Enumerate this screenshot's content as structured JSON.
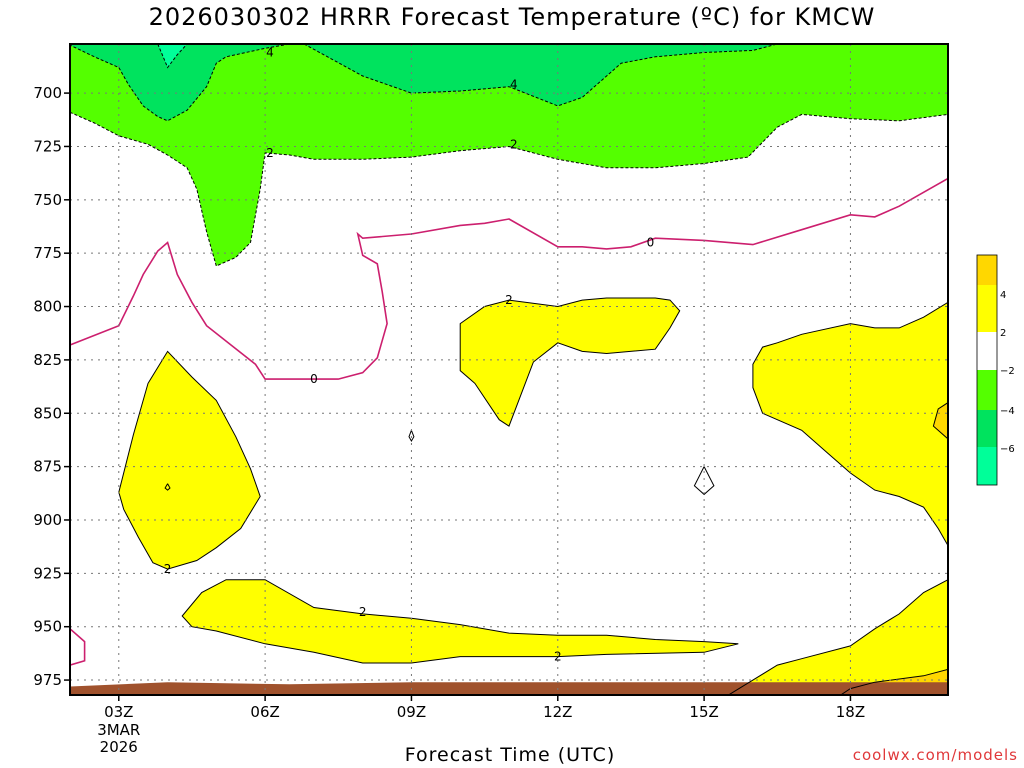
{
  "title": "2026030302 HRRR Forecast Temperature (ºC) for KMCW",
  "credit": "coolwx.com/models",
  "chart_data": {
    "type": "contour",
    "title": "2026030302 HRRR Forecast Temperature (ºC) for KMCW",
    "xlabel": "Forecast Time (UTC)",
    "ylabel": "",
    "x_ticks": [
      {
        "hour": 3,
        "label": "03Z",
        "sub": [
          "3MAR",
          "2026"
        ]
      },
      {
        "hour": 6,
        "label": "06Z"
      },
      {
        "hour": 9,
        "label": "09Z"
      },
      {
        "hour": 12,
        "label": "12Z"
      },
      {
        "hour": 15,
        "label": "15Z"
      },
      {
        "hour": 18,
        "label": "18Z"
      }
    ],
    "xlim": [
      2,
      20
    ],
    "y_ticks": [
      700,
      725,
      750,
      775,
      800,
      825,
      850,
      875,
      900,
      925,
      950,
      975
    ],
    "ylim": [
      677,
      982
    ],
    "y_inverted": true,
    "grid": true,
    "colors": {
      "pos2to4": "#ffff00",
      "pos4to6": "#ffd700",
      "neg2to4": "#54ff00",
      "neg4to6": "#00e35e",
      "neg6to8": "#00ff99",
      "ground": "#a0522d",
      "zero_line": "#cc1f6e",
      "frame": "#000000"
    },
    "colorbar": {
      "labels": [
        "4",
        "2",
        "−2",
        "−4",
        "−6"
      ]
    },
    "ground_top_pressure": [
      [
        2.0,
        978
      ],
      [
        4.0,
        976
      ],
      [
        6.5,
        977
      ],
      [
        9.0,
        976
      ],
      [
        20.0,
        976
      ]
    ],
    "contours": [
      {
        "level": -2,
        "kind": "fill",
        "fill": "neg2to4",
        "stroke": "dashed",
        "path": [
          [
            2.0,
            677
          ],
          [
            20.0,
            677
          ],
          [
            20.0,
            710
          ],
          [
            19.0,
            713
          ],
          [
            18.0,
            712
          ],
          [
            17.0,
            710
          ],
          [
            16.5,
            716
          ],
          [
            15.9,
            730
          ],
          [
            15.0,
            733
          ],
          [
            14.0,
            735
          ],
          [
            13.0,
            735
          ],
          [
            12.0,
            731
          ],
          [
            11.0,
            725
          ],
          [
            10.0,
            727
          ],
          [
            9.0,
            730
          ],
          [
            8.0,
            731
          ],
          [
            7.0,
            731
          ],
          [
            6.5,
            729
          ],
          [
            6.0,
            728
          ],
          [
            5.9,
            745
          ],
          [
            5.7,
            770
          ],
          [
            5.4,
            777
          ],
          [
            5.0,
            781
          ],
          [
            4.8,
            765
          ],
          [
            4.6,
            745
          ],
          [
            4.4,
            735
          ],
          [
            4.0,
            729
          ],
          [
            3.6,
            724
          ],
          [
            3.0,
            720
          ],
          [
            2.5,
            714
          ],
          [
            2.0,
            709
          ]
        ]
      },
      {
        "level": -4,
        "kind": "fill",
        "fill": "neg4to6",
        "stroke": "dashed",
        "path": [
          [
            2.0,
            677
          ],
          [
            2.0,
            677.5
          ],
          [
            2.5,
            683
          ],
          [
            3.0,
            688
          ],
          [
            3.2,
            696
          ],
          [
            3.5,
            706
          ],
          [
            3.8,
            711
          ],
          [
            4.0,
            713
          ],
          [
            4.4,
            708
          ],
          [
            4.8,
            697
          ],
          [
            5.0,
            686
          ],
          [
            5.2,
            683
          ],
          [
            6.0,
            679
          ],
          [
            6.5,
            677
          ]
        ]
      },
      {
        "level": -4,
        "kind": "fill",
        "fill": "neg4to6",
        "stroke": "dashed",
        "path": [
          [
            6.8,
            677
          ],
          [
            8.0,
            692
          ],
          [
            9.0,
            700
          ],
          [
            10.0,
            699
          ],
          [
            11.0,
            697
          ],
          [
            12.0,
            706
          ],
          [
            12.5,
            702
          ],
          [
            13.0,
            692
          ],
          [
            13.3,
            686
          ],
          [
            14.0,
            683
          ],
          [
            15.0,
            681
          ],
          [
            16.0,
            680
          ],
          [
            16.5,
            677
          ]
        ]
      },
      {
        "level": -6,
        "kind": "fill",
        "fill": "neg6to8",
        "stroke": "dashed",
        "path": [
          [
            3.8,
            677
          ],
          [
            4.0,
            688
          ],
          [
            4.2,
            682
          ],
          [
            4.4,
            677
          ]
        ]
      },
      {
        "level": 0,
        "kind": "line",
        "stroke": "zero_line",
        "path": [
          [
            2.0,
            818
          ],
          [
            3.0,
            809
          ],
          [
            3.3,
            795
          ],
          [
            3.5,
            785
          ],
          [
            3.8,
            774
          ],
          [
            4.0,
            770
          ],
          [
            4.2,
            785
          ],
          [
            4.5,
            798
          ],
          [
            4.8,
            809
          ],
          [
            5.3,
            818
          ],
          [
            5.8,
            827
          ],
          [
            6.0,
            834
          ],
          [
            6.5,
            834
          ],
          [
            7.0,
            834
          ],
          [
            7.5,
            834
          ],
          [
            8.0,
            831
          ],
          [
            8.3,
            824
          ],
          [
            8.5,
            808
          ],
          [
            8.4,
            793
          ],
          [
            8.3,
            780
          ],
          [
            8.0,
            776
          ],
          [
            7.9,
            766
          ],
          [
            8.0,
            768
          ],
          [
            9.0,
            766
          ],
          [
            10.0,
            762
          ],
          [
            10.5,
            761
          ],
          [
            11.0,
            759
          ],
          [
            12.0,
            772
          ],
          [
            12.5,
            772
          ],
          [
            13.0,
            773
          ],
          [
            13.5,
            772
          ],
          [
            14.0,
            768
          ],
          [
            15.0,
            769
          ],
          [
            16.0,
            771
          ],
          [
            17.0,
            764
          ],
          [
            18.0,
            757
          ],
          [
            18.5,
            758
          ],
          [
            19.0,
            753
          ],
          [
            20.0,
            740
          ]
        ]
      },
      {
        "level": 2,
        "kind": "fill",
        "fill": "pos2to4",
        "stroke": "solid",
        "path": [
          [
            3.0,
            887
          ],
          [
            3.3,
            860
          ],
          [
            3.6,
            836
          ],
          [
            4.0,
            821
          ],
          [
            4.5,
            833
          ],
          [
            5.0,
            844
          ],
          [
            5.4,
            861
          ],
          [
            5.7,
            876
          ],
          [
            5.9,
            889
          ],
          [
            5.5,
            904
          ],
          [
            5.0,
            913
          ],
          [
            4.6,
            919
          ],
          [
            4.0,
            923
          ],
          [
            3.7,
            920
          ],
          [
            3.4,
            908
          ],
          [
            3.1,
            895
          ]
        ]
      },
      {
        "level": 2,
        "kind": "fill",
        "fill": "pos2to4",
        "stroke": "solid",
        "path": [
          [
            4.3,
            945
          ],
          [
            4.7,
            934
          ],
          [
            5.2,
            928
          ],
          [
            6.0,
            928
          ],
          [
            7.0,
            941
          ],
          [
            8.0,
            944
          ],
          [
            9.0,
            946
          ],
          [
            10.0,
            949
          ],
          [
            11.0,
            953
          ],
          [
            12.0,
            954
          ],
          [
            13.0,
            954
          ],
          [
            14.0,
            956
          ],
          [
            15.0,
            957
          ],
          [
            15.7,
            958
          ],
          [
            15.0,
            962
          ],
          [
            13.0,
            963
          ],
          [
            12.0,
            964
          ],
          [
            11.0,
            964
          ],
          [
            10.0,
            964
          ],
          [
            9.0,
            967
          ],
          [
            8.0,
            967
          ],
          [
            7.0,
            962
          ],
          [
            6.0,
            958
          ],
          [
            5.0,
            952
          ],
          [
            4.5,
            950
          ]
        ]
      },
      {
        "level": 2,
        "kind": "fill",
        "fill": "pos2to4",
        "stroke": "solid",
        "path": [
          [
            10.0,
            808
          ],
          [
            10.5,
            800
          ],
          [
            11.0,
            797
          ],
          [
            12.0,
            800
          ],
          [
            12.5,
            797
          ],
          [
            13.0,
            796
          ],
          [
            14.0,
            796
          ],
          [
            14.3,
            797
          ],
          [
            14.5,
            802
          ],
          [
            14.3,
            810
          ],
          [
            14.0,
            820
          ],
          [
            13.0,
            822
          ],
          [
            12.5,
            821
          ],
          [
            12.0,
            817
          ],
          [
            11.5,
            826
          ],
          [
            11.0,
            856
          ],
          [
            10.8,
            853
          ],
          [
            10.3,
            836
          ],
          [
            10.0,
            830
          ]
        ]
      },
      {
        "level": 2,
        "kind": "fill",
        "fill": "pos2to4",
        "stroke": "solid",
        "path": [
          [
            16.0,
            827
          ],
          [
            16.2,
            819
          ],
          [
            16.5,
            817
          ],
          [
            17.0,
            813
          ],
          [
            18.0,
            808
          ],
          [
            18.5,
            810
          ],
          [
            19.0,
            810
          ],
          [
            19.5,
            805
          ],
          [
            20.0,
            798
          ],
          [
            20.0,
            912
          ],
          [
            19.8,
            904
          ],
          [
            19.5,
            894
          ],
          [
            19.0,
            889
          ],
          [
            18.5,
            886
          ],
          [
            18.0,
            878
          ],
          [
            17.5,
            868
          ],
          [
            17.0,
            858
          ],
          [
            16.5,
            853
          ],
          [
            16.2,
            850
          ],
          [
            16.0,
            838
          ]
        ]
      },
      {
        "level": 2,
        "kind": "fill",
        "fill": "pos2to4",
        "stroke": "solid",
        "path": [
          [
            20.0,
            928
          ],
          [
            19.5,
            934
          ],
          [
            19.0,
            944
          ],
          [
            18.5,
            951
          ],
          [
            18.0,
            959
          ],
          [
            17.0,
            965
          ],
          [
            16.5,
            968
          ],
          [
            16.0,
            975
          ],
          [
            15.5,
            982
          ],
          [
            20.0,
            982
          ]
        ]
      },
      {
        "level": 4,
        "kind": "fill",
        "fill": "pos4to6",
        "stroke": "solid",
        "path": [
          [
            20.0,
            970
          ],
          [
            19.5,
            973
          ],
          [
            18.5,
            976
          ],
          [
            18.0,
            979
          ],
          [
            17.8,
            982
          ],
          [
            20.0,
            982
          ]
        ]
      },
      {
        "level": 4,
        "kind": "fill",
        "fill": "pos4to6",
        "stroke": "solid",
        "path": [
          [
            20.0,
            845
          ],
          [
            19.8,
            848
          ],
          [
            19.7,
            856
          ],
          [
            20.0,
            862
          ]
        ]
      },
      {
        "level": 0,
        "kind": "line",
        "stroke": "zero_line",
        "path": [
          [
            2.0,
            951
          ],
          [
            2.3,
            957
          ],
          [
            2.3,
            966
          ],
          [
            2.0,
            968
          ]
        ]
      },
      {
        "level": 2,
        "kind": "line",
        "stroke": "solid",
        "path": [
          [
            15.0,
            875
          ],
          [
            14.8,
            884
          ],
          [
            15.0,
            888
          ],
          [
            15.2,
            884
          ],
          [
            15.0,
            875
          ]
        ]
      },
      {
        "level": 2,
        "kind": "line",
        "stroke": "solid",
        "path": [
          [
            9.0,
            858
          ],
          [
            8.95,
            861
          ],
          [
            9.0,
            863
          ],
          [
            9.05,
            861
          ],
          [
            9.0,
            858
          ]
        ]
      },
      {
        "level": 2,
        "kind": "line",
        "stroke": "solid",
        "path": [
          [
            4.0,
            883
          ],
          [
            3.95,
            885
          ],
          [
            4.0,
            886
          ],
          [
            4.05,
            885
          ],
          [
            4.0,
            883
          ]
        ]
      }
    ],
    "contour_labels": [
      {
        "text": "4",
        "x": 6.1,
        "y": 681
      },
      {
        "text": "4",
        "x": 11.1,
        "y": 696
      },
      {
        "text": "2",
        "x": 6.1,
        "y": 728
      },
      {
        "text": "2",
        "x": 11.1,
        "y": 724
      },
      {
        "text": "0",
        "x": 13.9,
        "y": 770
      },
      {
        "text": "0",
        "x": 7.0,
        "y": 834
      },
      {
        "text": "2",
        "x": 11.0,
        "y": 797
      },
      {
        "text": "2",
        "x": 4.0,
        "y": 923
      },
      {
        "text": "2",
        "x": 8.0,
        "y": 943
      },
      {
        "text": "2",
        "x": 12.0,
        "y": 964
      }
    ]
  }
}
